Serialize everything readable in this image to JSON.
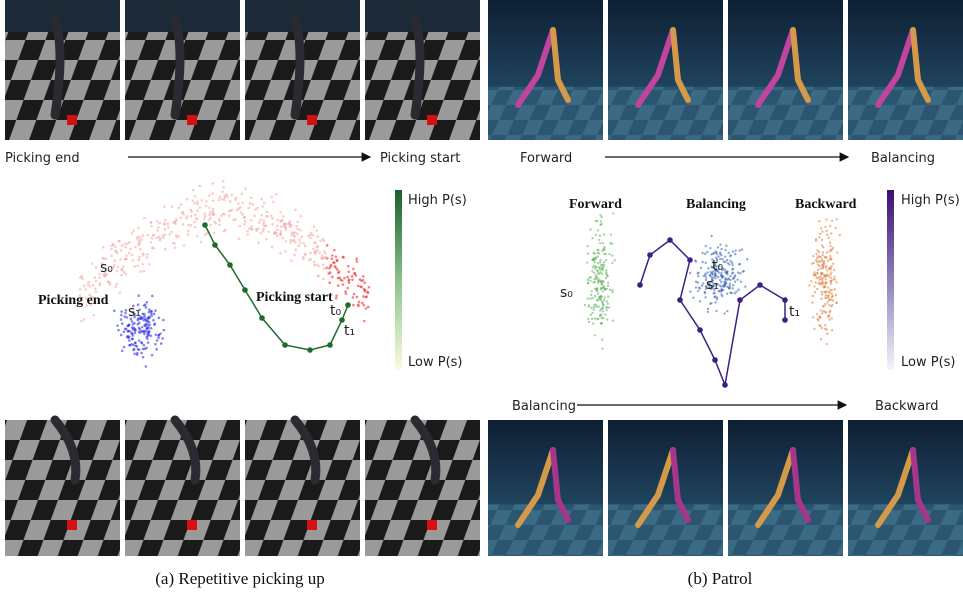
{
  "panels": [
    {
      "caption": "(a) Repetitive picking up",
      "top_arrow": {
        "start": "Picking end",
        "end": "Picking start"
      },
      "colorbar": {
        "high": "High P(s)",
        "low": "Low P(s)"
      },
      "annotations": {
        "start_state": "s₀",
        "second_state": "s₁",
        "target_0": "t₀",
        "target_1": "t₁",
        "left_region": "Picking end",
        "right_region": "Picking start"
      }
    },
    {
      "caption": "(b) Patrol",
      "top_arrow": {
        "start": "Forward",
        "end": "Balancing"
      },
      "bottom_arrow": {
        "start": "Balancing",
        "end": "Backward"
      },
      "colorbar": {
        "high": "High P(s)",
        "low": "Low P(s)"
      },
      "annotations": {
        "start_state": "s₀",
        "second_state": "s₁",
        "target_0": "t₀",
        "target_1": "t₁",
        "left_region": "Forward",
        "middle_region": "Balancing",
        "right_region": "Backward"
      }
    }
  ]
}
